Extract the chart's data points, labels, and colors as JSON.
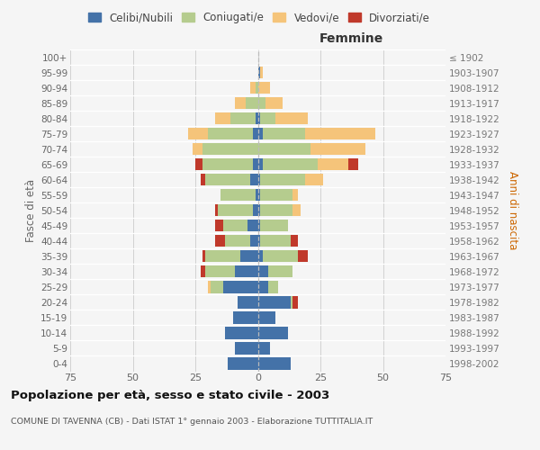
{
  "age_groups": [
    "0-4",
    "5-9",
    "10-14",
    "15-19",
    "20-24",
    "25-29",
    "30-34",
    "35-39",
    "40-44",
    "45-49",
    "50-54",
    "55-59",
    "60-64",
    "65-69",
    "70-74",
    "75-79",
    "80-84",
    "85-89",
    "90-94",
    "95-99",
    "100+"
  ],
  "birth_years": [
    "1998-2002",
    "1993-1997",
    "1988-1992",
    "1983-1987",
    "1978-1982",
    "1973-1977",
    "1968-1972",
    "1963-1967",
    "1958-1962",
    "1953-1957",
    "1948-1952",
    "1943-1947",
    "1938-1942",
    "1933-1937",
    "1928-1932",
    "1923-1927",
    "1918-1922",
    "1913-1917",
    "1908-1912",
    "1903-1907",
    "≤ 1902"
  ],
  "m_celibi": [
    12,
    9,
    13,
    10,
    8,
    14,
    9,
    7,
    3,
    4,
    2,
    1,
    3,
    2,
    0,
    2,
    1,
    0,
    0,
    0,
    0
  ],
  "m_coniugati": [
    0,
    0,
    0,
    0,
    0,
    5,
    12,
    14,
    10,
    10,
    14,
    14,
    18,
    20,
    22,
    18,
    10,
    5,
    1,
    0,
    0
  ],
  "m_vedovi": [
    0,
    0,
    0,
    0,
    0,
    1,
    0,
    0,
    0,
    0,
    0,
    0,
    0,
    0,
    4,
    8,
    6,
    4,
    2,
    0,
    0
  ],
  "m_divorziati": [
    0,
    0,
    0,
    0,
    0,
    0,
    2,
    1,
    4,
    3,
    1,
    0,
    2,
    3,
    0,
    0,
    0,
    0,
    0,
    0,
    0
  ],
  "f_nubili": [
    13,
    5,
    12,
    7,
    13,
    4,
    4,
    2,
    1,
    1,
    1,
    1,
    1,
    2,
    0,
    2,
    1,
    0,
    0,
    1,
    0
  ],
  "f_coniugate": [
    0,
    0,
    0,
    0,
    1,
    4,
    10,
    14,
    12,
    11,
    13,
    13,
    18,
    22,
    21,
    17,
    6,
    3,
    0,
    0,
    0
  ],
  "f_vedove": [
    0,
    0,
    0,
    0,
    0,
    0,
    0,
    0,
    0,
    0,
    3,
    2,
    7,
    12,
    22,
    28,
    13,
    7,
    5,
    1,
    0
  ],
  "f_divorziate": [
    0,
    0,
    0,
    0,
    2,
    0,
    0,
    4,
    3,
    0,
    0,
    0,
    0,
    4,
    0,
    0,
    0,
    0,
    0,
    0,
    0
  ],
  "color_celibi": "#4472a8",
  "color_coniugati": "#b5cc8e",
  "color_vedovi": "#f5c47a",
  "color_divorziati": "#c0392b",
  "xlim": 75,
  "title": "Popolazione per età, sesso e stato civile - 2003",
  "subtitle": "COMUNE DI TAVENNA (CB) - Dati ISTAT 1° gennaio 2003 - Elaborazione TUTTITALIA.IT",
  "ylabel_left": "Fasce di età",
  "ylabel_right": "Anni di nascita",
  "label_femmine": "Femmine",
  "legend_labels": [
    "Celibi/Nubili",
    "Coniugati/e",
    "Vedovi/e",
    "Divorziati/e"
  ],
  "bg_color": "#f5f5f5",
  "bar_height": 0.78
}
